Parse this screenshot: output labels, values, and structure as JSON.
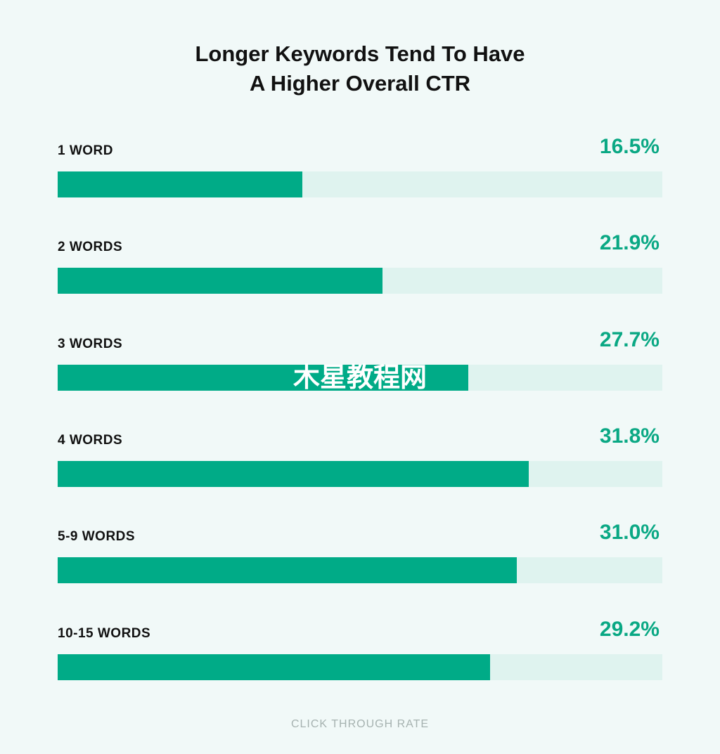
{
  "chart_data": {
    "type": "bar",
    "orientation": "horizontal",
    "title_lines": [
      "Longer Keywords Tend To Have",
      "A Higher Overall CTR"
    ],
    "categories": [
      "1 WORD",
      "2 WORDS",
      "3 WORDS",
      "4 WORDS",
      "5-9 WORDS",
      "10-15 WORDS"
    ],
    "values": [
      16.5,
      21.9,
      27.7,
      31.8,
      31.0,
      29.2
    ],
    "value_labels": [
      "16.5%",
      "21.9%",
      "27.7%",
      "31.8%",
      "31.0%",
      "29.2%"
    ],
    "xlabel": "CLICK THROUGH RATE",
    "xlim": [
      0,
      40.8
    ],
    "grid": false,
    "colors": {
      "bar": "#00ab87",
      "track": "#dff3ef",
      "value_text": "#0aa884",
      "background": "#f1f9f8"
    }
  },
  "watermark": {
    "text": "木星教程网"
  }
}
